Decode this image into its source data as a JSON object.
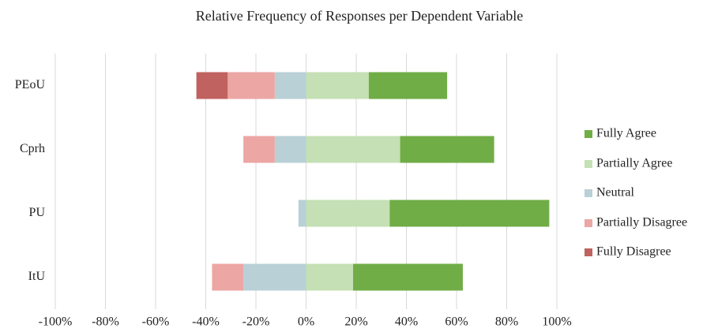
{
  "chart_data": {
    "type": "bar",
    "orientation": "horizontal",
    "stacked": "diverging",
    "title": "Relative Frequency of Responses per Dependent Variable",
    "categories": [
      "PEoU",
      "Cprh",
      "PU",
      "ItU"
    ],
    "series": [
      {
        "name": "Fully Agree",
        "color": "#70ad47",
        "values": [
          31.25,
          37.5,
          63.64,
          43.75
        ]
      },
      {
        "name": "Partially Agree",
        "color": "#c5e0b4",
        "values": [
          25,
          37.5,
          33.33,
          18.75
        ]
      },
      {
        "name": "Neutral",
        "color": "#b8d0d6",
        "values": [
          -12.5,
          -12.5,
          -3.03,
          -25
        ]
      },
      {
        "name": "Partially Disagree",
        "color": "#eca6a4",
        "values": [
          -18.75,
          -12.5,
          0,
          -12.5
        ]
      },
      {
        "name": "Fully Disagree",
        "color": "#c0625f",
        "values": [
          -12.5,
          0,
          0,
          0
        ]
      }
    ],
    "xlim": [
      -100,
      100
    ],
    "xticks": [
      {
        "value": -100,
        "label": "-100%"
      },
      {
        "value": -80,
        "label": "-80%"
      },
      {
        "value": -60,
        "label": "-60%"
      },
      {
        "value": -40,
        "label": "-40%"
      },
      {
        "value": -20,
        "label": "-20%"
      },
      {
        "value": 0,
        "label": "0%"
      },
      {
        "value": 20,
        "label": "20%"
      },
      {
        "value": 40,
        "label": "40%"
      },
      {
        "value": 60,
        "label": "60%"
      },
      {
        "value": 80,
        "label": "80%"
      },
      {
        "value": 100,
        "label": "100%"
      }
    ],
    "grid": true,
    "legend": "right"
  }
}
